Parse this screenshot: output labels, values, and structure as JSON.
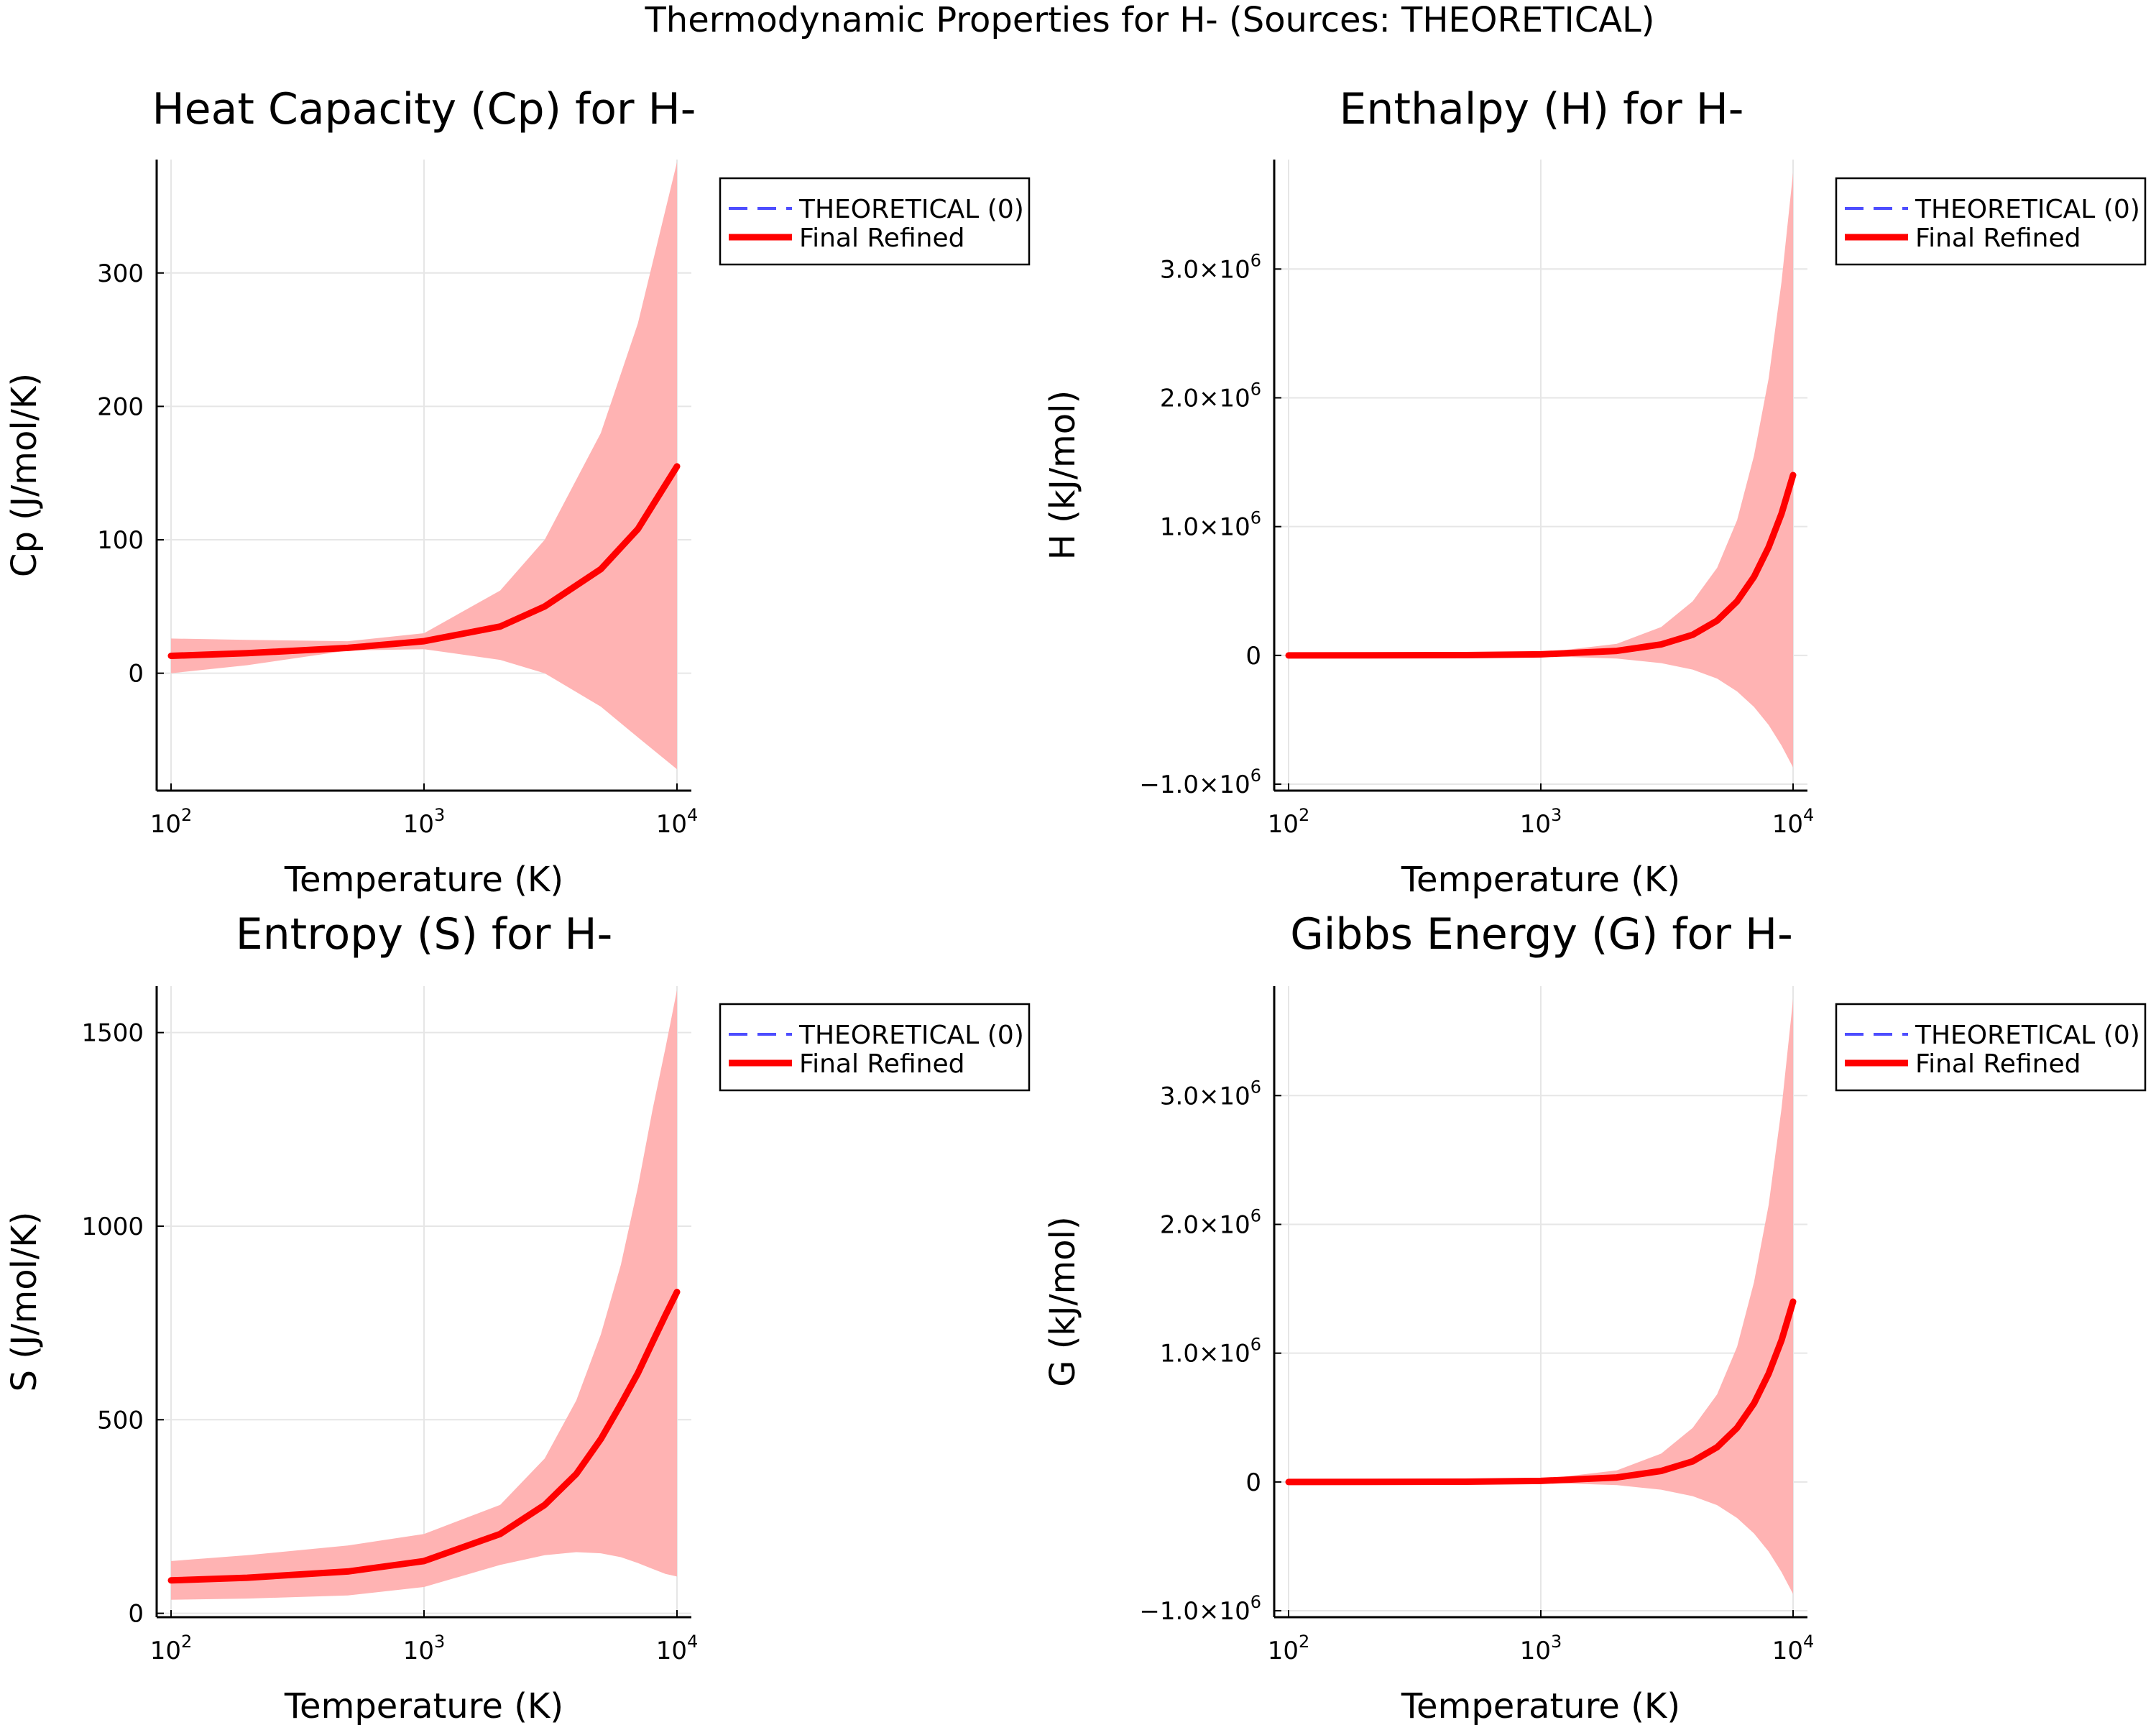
{
  "figure": {
    "suptitle": "Thermodynamic Properties for H- (Sources: THEORETICAL)"
  },
  "legend": {
    "entries": [
      "THEORETICAL (0)",
      "Final Refined"
    ],
    "placement": "outer-top-right"
  },
  "colors": {
    "theoretical": "#4d4dff",
    "refined": "#ff0000",
    "band": "#ffb3b3",
    "grid": "#e6e6e6",
    "axis": "#000000"
  },
  "chart_data": [
    {
      "type": "line",
      "title": "Heat Capacity (Cp) for H-",
      "xlabel": "Temperature (K)",
      "ylabel": "Cp (J/mol/K)",
      "xscale": "log",
      "xlim": [
        100,
        10000
      ],
      "ylim": [
        -88,
        385
      ],
      "xticks": [
        100,
        1000,
        10000
      ],
      "xtick_labels": [
        {
          "base": "10",
          "exp": "2"
        },
        {
          "base": "10",
          "exp": "3"
        },
        {
          "base": "10",
          "exp": "4"
        }
      ],
      "yticks": [
        0,
        100,
        200,
        300
      ],
      "ytick_labels": [
        {
          "base": "0",
          "exp": ""
        },
        {
          "base": "100",
          "exp": ""
        },
        {
          "base": "200",
          "exp": ""
        },
        {
          "base": "300",
          "exp": ""
        }
      ],
      "grid": true,
      "series": [
        {
          "name": "THEORETICAL (0)",
          "x": [
            100,
            10000
          ],
          "y": [
            0,
            0
          ]
        },
        {
          "name": "Final Refined",
          "style": "solid",
          "x": [
            100,
            200,
            500,
            1000,
            2000,
            3000,
            5000,
            7000,
            10000
          ],
          "y": [
            13,
            15,
            19,
            24,
            35,
            50,
            78,
            108,
            155
          ]
        }
      ],
      "band": {
        "x": [
          100,
          200,
          500,
          1000,
          2000,
          3000,
          5000,
          7000,
          10000
        ],
        "lower": [
          0,
          6,
          17,
          18,
          10,
          0,
          -25,
          -48,
          -72
        ],
        "upper": [
          26,
          25,
          24,
          30,
          62,
          100,
          180,
          262,
          383
        ]
      }
    },
    {
      "type": "line",
      "title": "Enthalpy (H) for H-",
      "xlabel": "Temperature (K)",
      "ylabel": "H (kJ/mol)",
      "xscale": "log",
      "xlim": [
        100,
        10000
      ],
      "ylim": [
        -1050000,
        3850000
      ],
      "xticks": [
        100,
        1000,
        10000
      ],
      "xtick_labels": [
        {
          "base": "10",
          "exp": "2"
        },
        {
          "base": "10",
          "exp": "3"
        },
        {
          "base": "10",
          "exp": "4"
        }
      ],
      "yticks": [
        -1000000,
        0,
        1000000,
        2000000,
        3000000
      ],
      "ytick_labels": [
        {
          "base": "−1.0×10",
          "exp": "6"
        },
        {
          "base": "0",
          "exp": ""
        },
        {
          "base": "1.0×10",
          "exp": "6"
        },
        {
          "base": "2.0×10",
          "exp": "6"
        },
        {
          "base": "3.0×10",
          "exp": "6"
        }
      ],
      "grid": true,
      "series": [
        {
          "name": "THEORETICAL (0)",
          "x": [
            100,
            10000
          ],
          "y": [
            0,
            0
          ]
        },
        {
          "name": "Final Refined",
          "style": "solid",
          "x": [
            100,
            500,
            1000,
            2000,
            3000,
            4000,
            5000,
            6000,
            7000,
            8000,
            9000,
            10000
          ],
          "y": [
            0,
            2000,
            8000,
            35000,
            85000,
            160000,
            270000,
            420000,
            610000,
            840000,
            1100000,
            1400000
          ]
        }
      ],
      "band": {
        "x": [
          100,
          500,
          1000,
          2000,
          3000,
          4000,
          5000,
          6000,
          7000,
          8000,
          9000,
          10000
        ],
        "lower": [
          0,
          -1000,
          -5000,
          -25000,
          -60000,
          -110000,
          -180000,
          -280000,
          -400000,
          -540000,
          -700000,
          -870000
        ],
        "upper": [
          0,
          5000,
          20000,
          90000,
          220000,
          420000,
          680000,
          1050000,
          1550000,
          2150000,
          2900000,
          3750000
        ]
      }
    },
    {
      "type": "line",
      "title": "Entropy (S) for H-",
      "xlabel": "Temperature (K)",
      "ylabel": "S (J/mol/K)",
      "xscale": "log",
      "xlim": [
        100,
        10000
      ],
      "ylim": [
        -10,
        1620
      ],
      "xticks": [
        100,
        1000,
        10000
      ],
      "xtick_labels": [
        {
          "base": "10",
          "exp": "2"
        },
        {
          "base": "10",
          "exp": "3"
        },
        {
          "base": "10",
          "exp": "4"
        }
      ],
      "yticks": [
        0,
        500,
        1000,
        1500
      ],
      "ytick_labels": [
        {
          "base": "0",
          "exp": ""
        },
        {
          "base": "500",
          "exp": ""
        },
        {
          "base": "1000",
          "exp": ""
        },
        {
          "base": "1500",
          "exp": ""
        }
      ],
      "grid": true,
      "series": [
        {
          "name": "THEORETICAL (0)",
          "x": [
            100,
            10000
          ],
          "y": [
            0,
            0
          ]
        },
        {
          "name": "Final Refined",
          "style": "solid",
          "x": [
            100,
            200,
            500,
            1000,
            2000,
            3000,
            4000,
            5000,
            6000,
            7000,
            8000,
            9000,
            10000
          ],
          "y": [
            85,
            92,
            108,
            135,
            205,
            280,
            360,
            450,
            540,
            620,
            700,
            770,
            830
          ]
        }
      ],
      "band": {
        "x": [
          100,
          200,
          500,
          1000,
          2000,
          3000,
          4000,
          5000,
          6000,
          7000,
          8000,
          9000,
          10000
        ],
        "lower": [
          35,
          38,
          46,
          68,
          125,
          150,
          158,
          155,
          145,
          130,
          115,
          102,
          95
        ],
        "upper": [
          135,
          150,
          175,
          205,
          280,
          400,
          550,
          720,
          900,
          1100,
          1300,
          1460,
          1610
        ]
      }
    },
    {
      "type": "line",
      "title": "Gibbs Energy (G) for H-",
      "xlabel": "Temperature (K)",
      "ylabel": "G (kJ/mol)",
      "xscale": "log",
      "xlim": [
        100,
        10000
      ],
      "ylim": [
        -1050000,
        3850000
      ],
      "xticks": [
        100,
        1000,
        10000
      ],
      "xtick_labels": [
        {
          "base": "10",
          "exp": "2"
        },
        {
          "base": "10",
          "exp": "3"
        },
        {
          "base": "10",
          "exp": "4"
        }
      ],
      "yticks": [
        -1000000,
        0,
        1000000,
        2000000,
        3000000
      ],
      "ytick_labels": [
        {
          "base": "−1.0×10",
          "exp": "6"
        },
        {
          "base": "0",
          "exp": ""
        },
        {
          "base": "1.0×10",
          "exp": "6"
        },
        {
          "base": "2.0×10",
          "exp": "6"
        },
        {
          "base": "3.0×10",
          "exp": "6"
        }
      ],
      "grid": true,
      "series": [
        {
          "name": "THEORETICAL (0)",
          "x": [
            100,
            10000
          ],
          "y": [
            0,
            0
          ]
        },
        {
          "name": "Final Refined",
          "style": "solid",
          "x": [
            100,
            500,
            1000,
            2000,
            3000,
            4000,
            5000,
            6000,
            7000,
            8000,
            9000,
            10000
          ],
          "y": [
            0,
            2000,
            8000,
            35000,
            85000,
            160000,
            270000,
            420000,
            610000,
            840000,
            1100000,
            1400000
          ]
        }
      ],
      "band": {
        "x": [
          100,
          500,
          1000,
          2000,
          3000,
          4000,
          5000,
          6000,
          7000,
          8000,
          9000,
          10000
        ],
        "lower": [
          0,
          -1000,
          -5000,
          -25000,
          -60000,
          -110000,
          -180000,
          -280000,
          -400000,
          -540000,
          -700000,
          -870000
        ],
        "upper": [
          0,
          5000,
          20000,
          90000,
          220000,
          420000,
          680000,
          1050000,
          1550000,
          2150000,
          2900000,
          3750000
        ]
      }
    }
  ]
}
